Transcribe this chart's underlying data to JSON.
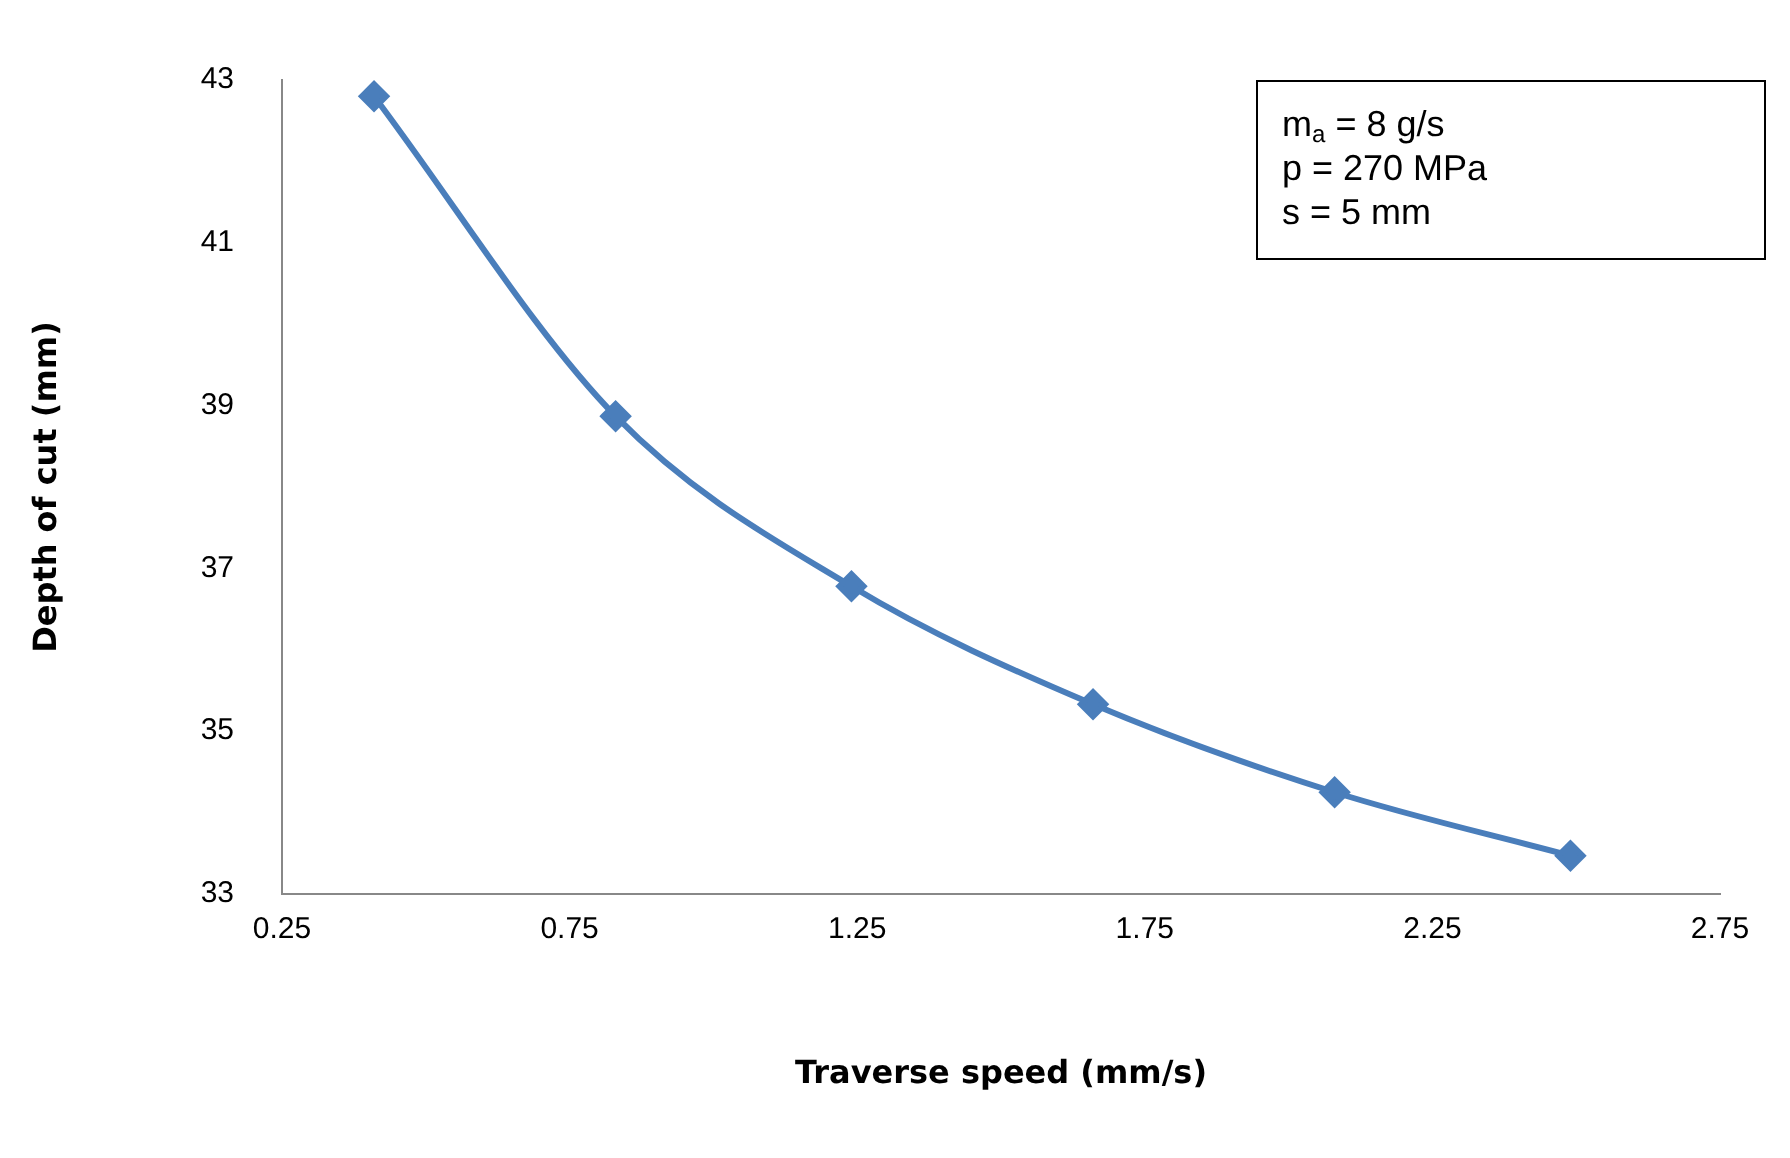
{
  "chart_data": {
    "type": "line",
    "xlabel": "Traverse speed (mm/s)",
    "ylabel": "Depth of cut (mm)",
    "x": [
      0.41,
      0.83,
      1.24,
      1.66,
      2.08,
      2.49
    ],
    "series": [
      {
        "color": "#4a7ebb",
        "values": [
          42.8,
          38.87,
          36.78,
          35.33,
          34.25,
          33.47
        ]
      }
    ],
    "xlim": [
      0.25,
      2.75
    ],
    "xticks": [
      0.25,
      0.75,
      1.25,
      1.75,
      2.25,
      2.75
    ],
    "ylim": [
      33,
      43
    ],
    "yticks": [
      33,
      35,
      37,
      39,
      41,
      43
    ],
    "grid": false,
    "legend": false,
    "marker": "diamond",
    "line_style": "solid",
    "annotations": [
      "m$_{a}$ = 8 g/s",
      "p = 270 MPa",
      "s = 5 mm"
    ]
  }
}
